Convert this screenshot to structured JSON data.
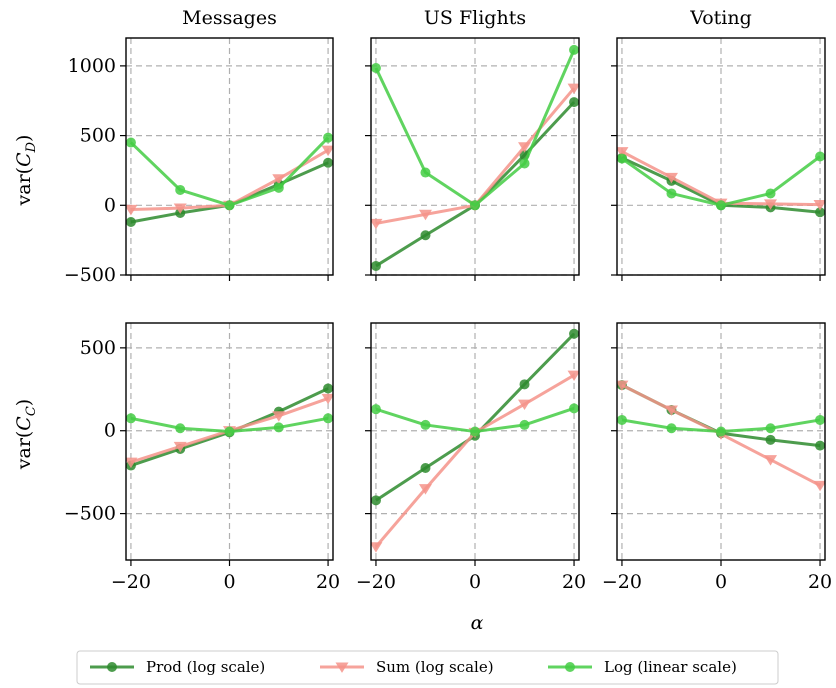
{
  "chart_data": {
    "type": "line",
    "layout": "2x3 grid",
    "column_titles": [
      "Messages",
      "US Flights",
      "Voting"
    ],
    "row_ylabels": [
      "var(C_D)",
      "var(C_C)"
    ],
    "xlabel": "α",
    "x": [
      -20,
      -10,
      0,
      10,
      20
    ],
    "xticks": [
      "−20",
      "0",
      "20"
    ],
    "rows": [
      {
        "ylim": [
          -500,
          1200
        ],
        "yticks": [
          {
            "value": 1000,
            "label": "1000"
          },
          {
            "value": 500,
            "label": "500"
          },
          {
            "value": 0,
            "label": "0"
          },
          {
            "value": -500,
            "label": "−500"
          }
        ]
      },
      {
        "ylim": [
          -780,
          650
        ],
        "yticks": [
          {
            "value": 500,
            "label": "500"
          },
          {
            "value": 0,
            "label": "0"
          },
          {
            "value": -500,
            "label": "−500"
          }
        ]
      }
    ],
    "series_style": [
      {
        "key": "prod",
        "name": "Prod (log scale)",
        "color": "#2e8b2e",
        "marker": "circle"
      },
      {
        "key": "sum",
        "name": "Sum (log scale)",
        "color": "#f4938a",
        "marker": "triangle-down"
      },
      {
        "key": "log",
        "name": "Log (linear scale)",
        "color": "#44cc44",
        "marker": "circle"
      }
    ],
    "panels": [
      {
        "row": 0,
        "col": 0,
        "title": "Messages",
        "series": {
          "prod": [
            -120,
            -55,
            0,
            150,
            305
          ],
          "sum": [
            -30,
            -20,
            0,
            190,
            395
          ],
          "log": [
            450,
            110,
            0,
            125,
            485
          ]
        }
      },
      {
        "row": 0,
        "col": 1,
        "title": "US Flights",
        "series": {
          "prod": [
            -435,
            -215,
            0,
            360,
            740
          ],
          "sum": [
            -130,
            -65,
            0,
            420,
            840
          ],
          "log": [
            985,
            235,
            0,
            300,
            1115
          ]
        }
      },
      {
        "row": 0,
        "col": 2,
        "title": "Voting",
        "series": {
          "prod": [
            340,
            175,
            0,
            -15,
            -50
          ],
          "sum": [
            385,
            200,
            15,
            10,
            5
          ],
          "log": [
            335,
            85,
            0,
            85,
            350
          ]
        }
      },
      {
        "row": 1,
        "col": 0,
        "title": "",
        "series": {
          "prod": [
            -210,
            -110,
            -10,
            115,
            255
          ],
          "sum": [
            -190,
            -95,
            0,
            90,
            195
          ],
          "log": [
            75,
            15,
            -5,
            20,
            75
          ]
        }
      },
      {
        "row": 1,
        "col": 1,
        "title": "",
        "series": {
          "prod": [
            -420,
            -225,
            -30,
            280,
            585
          ],
          "sum": [
            -700,
            -350,
            -10,
            160,
            335
          ],
          "log": [
            130,
            35,
            -5,
            35,
            135
          ]
        }
      },
      {
        "row": 1,
        "col": 2,
        "title": "",
        "series": {
          "prod": [
            275,
            125,
            -15,
            -55,
            -90
          ],
          "sum": [
            275,
            125,
            -20,
            -175,
            -330
          ],
          "log": [
            65,
            15,
            -5,
            15,
            65
          ]
        }
      }
    ],
    "grid": true,
    "legend": "bottom"
  }
}
